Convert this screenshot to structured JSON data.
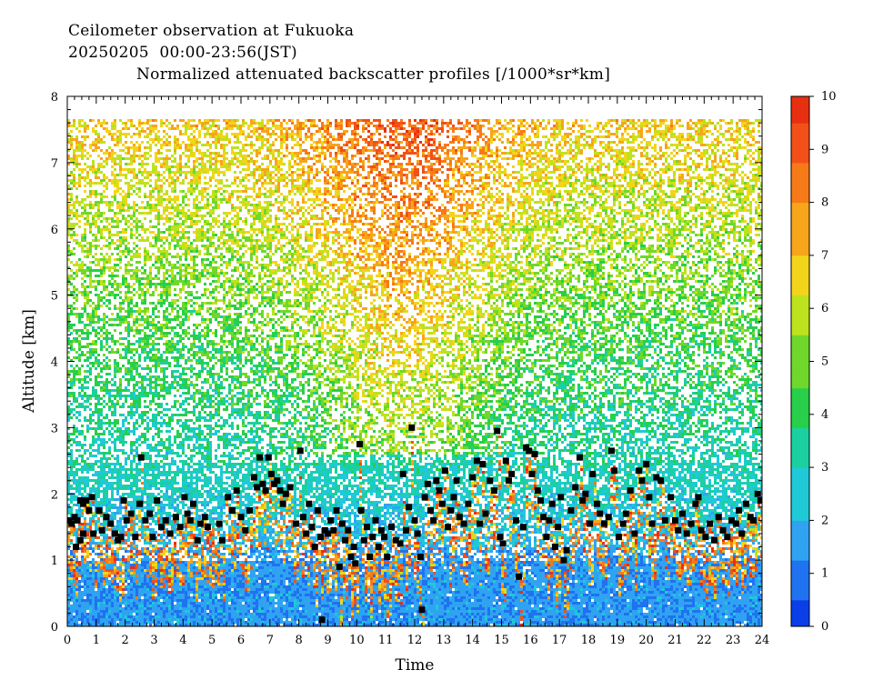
{
  "header": {
    "title": "Ceilometer observation at Fukuoka",
    "subtitle": "20250205  00:00-23:56(JST)",
    "product": "Normalized attenuated backscatter profiles [/1000*sr*km]"
  },
  "chart_data": {
    "type": "heatmap",
    "xlabel": "Time",
    "ylabel": "Altitude [km]",
    "xlim": [
      0,
      24
    ],
    "ylim": [
      0,
      8
    ],
    "x_ticks": [
      "0",
      "1",
      "2",
      "3",
      "4",
      "5",
      "6",
      "7",
      "8",
      "9",
      "10",
      "11",
      "12",
      "13",
      "14",
      "15",
      "16",
      "17",
      "18",
      "19",
      "20",
      "21",
      "22",
      "23",
      "24"
    ],
    "y_ticks": [
      "0",
      "1",
      "2",
      "3",
      "4",
      "5",
      "6",
      "7",
      "8"
    ],
    "data_ceiling_km": 7.68,
    "colorbar": {
      "range": [
        0,
        10
      ],
      "ticks": [
        "0",
        "1",
        "2",
        "3",
        "4",
        "5",
        "6",
        "7",
        "8",
        "9",
        "10"
      ],
      "colors": [
        "#0a3fe8",
        "#1f72f0",
        "#2fa3f2",
        "#1fc9d8",
        "#1bd0a0",
        "#27cf4a",
        "#6fd82a",
        "#bde21e",
        "#f2d51a",
        "#f7a51a",
        "#f77a18",
        "#f25018",
        "#e83010"
      ]
    },
    "cloud_base_series": {
      "name": "cloud base",
      "color": "#000000",
      "points": [
        [
          0.05,
          1.6
        ],
        [
          0.15,
          1.55
        ],
        [
          0.25,
          1.65
        ],
        [
          0.35,
          1.6
        ],
        [
          0.45,
          1.9
        ],
        [
          0.55,
          1.85
        ],
        [
          0.65,
          1.9
        ],
        [
          0.75,
          1.75
        ],
        [
          0.85,
          1.95
        ],
        [
          0.3,
          1.2
        ],
        [
          0.45,
          1.3
        ],
        [
          0.55,
          1.4
        ],
        [
          0.9,
          1.4
        ],
        [
          1.1,
          1.75
        ],
        [
          1.2,
          1.45
        ],
        [
          1.35,
          1.65
        ],
        [
          1.5,
          1.55
        ],
        [
          1.65,
          1.4
        ],
        [
          1.75,
          1.3
        ],
        [
          1.85,
          1.35
        ],
        [
          1.95,
          1.9
        ],
        [
          2.05,
          1.6
        ],
        [
          2.2,
          1.7
        ],
        [
          2.35,
          1.35
        ],
        [
          2.5,
          1.85
        ],
        [
          2.55,
          2.55
        ],
        [
          2.7,
          1.6
        ],
        [
          2.85,
          1.7
        ],
        [
          2.95,
          1.35
        ],
        [
          3.1,
          1.9
        ],
        [
          3.25,
          1.5
        ],
        [
          3.4,
          1.6
        ],
        [
          3.55,
          1.4
        ],
        [
          3.75,
          1.65
        ],
        [
          3.9,
          1.5
        ],
        [
          4.05,
          1.95
        ],
        [
          4.15,
          1.7
        ],
        [
          4.25,
          1.6
        ],
        [
          4.35,
          1.85
        ],
        [
          4.5,
          1.3
        ],
        [
          4.6,
          1.55
        ],
        [
          4.75,
          1.65
        ],
        [
          4.85,
          1.5
        ],
        [
          5.25,
          1.55
        ],
        [
          5.35,
          1.3
        ],
        [
          5.55,
          1.95
        ],
        [
          5.7,
          1.75
        ],
        [
          5.85,
          2.05
        ],
        [
          6.0,
          1.65
        ],
        [
          6.15,
          1.45
        ],
        [
          6.3,
          1.75
        ],
        [
          6.45,
          2.25
        ],
        [
          6.55,
          2.1
        ],
        [
          6.65,
          2.55
        ],
        [
          6.75,
          2.15
        ],
        [
          6.85,
          2.05
        ],
        [
          6.95,
          2.55
        ],
        [
          7.05,
          2.3
        ],
        [
          7.15,
          2.15
        ],
        [
          7.25,
          2.2
        ],
        [
          7.35,
          2.05
        ],
        [
          7.45,
          1.85
        ],
        [
          7.55,
          2.0
        ],
        [
          7.7,
          2.1
        ],
        [
          7.9,
          1.55
        ],
        [
          8.05,
          2.65
        ],
        [
          8.15,
          1.65
        ],
        [
          8.25,
          1.4
        ],
        [
          8.35,
          1.85
        ],
        [
          8.45,
          1.5
        ],
        [
          8.55,
          1.2
        ],
        [
          8.65,
          1.75
        ],
        [
          8.75,
          1.35
        ],
        [
          8.8,
          0.1
        ],
        [
          8.9,
          1.45
        ],
        [
          9.0,
          1.4
        ],
        [
          9.1,
          1.6
        ],
        [
          9.2,
          1.45
        ],
        [
          9.3,
          1.75
        ],
        [
          9.4,
          0.9
        ],
        [
          9.5,
          1.55
        ],
        [
          9.6,
          1.3
        ],
        [
          9.7,
          1.45
        ],
        [
          9.8,
          1.05
        ],
        [
          9.9,
          1.2
        ],
        [
          9.95,
          0.95
        ],
        [
          10.1,
          2.75
        ],
        [
          10.15,
          1.75
        ],
        [
          10.25,
          1.3
        ],
        [
          10.35,
          1.5
        ],
        [
          10.45,
          1.05
        ],
        [
          10.55,
          1.35
        ],
        [
          10.65,
          1.6
        ],
        [
          10.75,
          1.2
        ],
        [
          10.85,
          1.45
        ],
        [
          10.95,
          1.35
        ],
        [
          11.05,
          1.05
        ],
        [
          11.2,
          1.5
        ],
        [
          11.35,
          1.3
        ],
        [
          11.5,
          1.25
        ],
        [
          11.6,
          2.3
        ],
        [
          11.7,
          1.45
        ],
        [
          11.8,
          1.8
        ],
        [
          11.9,
          3.0
        ],
        [
          12.0,
          1.6
        ],
        [
          12.1,
          1.4
        ],
        [
          12.2,
          1.05
        ],
        [
          12.25,
          0.25
        ],
        [
          12.35,
          1.95
        ],
        [
          12.45,
          2.15
        ],
        [
          12.55,
          1.75
        ],
        [
          12.65,
          1.6
        ],
        [
          12.75,
          2.2
        ],
        [
          12.85,
          2.05
        ],
        [
          12.95,
          1.85
        ],
        [
          13.05,
          2.35
        ],
        [
          13.15,
          1.5
        ],
        [
          13.25,
          1.75
        ],
        [
          13.35,
          1.95
        ],
        [
          13.45,
          2.2
        ],
        [
          13.55,
          1.65
        ],
        [
          13.7,
          1.55
        ],
        [
          13.85,
          1.85
        ],
        [
          14.0,
          2.25
        ],
        [
          14.15,
          2.5
        ],
        [
          14.25,
          1.55
        ],
        [
          14.35,
          2.45
        ],
        [
          14.45,
          1.7
        ],
        [
          14.6,
          2.2
        ],
        [
          14.75,
          2.05
        ],
        [
          14.85,
          2.95
        ],
        [
          14.95,
          1.35
        ],
        [
          15.05,
          1.25
        ],
        [
          15.15,
          2.5
        ],
        [
          15.25,
          2.2
        ],
        [
          15.35,
          2.3
        ],
        [
          15.5,
          1.6
        ],
        [
          15.6,
          0.75
        ],
        [
          15.75,
          1.5
        ],
        [
          15.85,
          2.7
        ],
        [
          15.95,
          2.65
        ],
        [
          16.05,
          2.3
        ],
        [
          16.15,
          2.6
        ],
        [
          16.25,
          2.05
        ],
        [
          16.35,
          1.9
        ],
        [
          16.45,
          1.65
        ],
        [
          16.55,
          1.35
        ],
        [
          16.65,
          1.6
        ],
        [
          16.75,
          1.85
        ],
        [
          16.85,
          1.2
        ],
        [
          16.95,
          1.5
        ],
        [
          17.05,
          1.95
        ],
        [
          17.15,
          1.0
        ],
        [
          17.25,
          1.15
        ],
        [
          17.4,
          1.75
        ],
        [
          17.55,
          2.1
        ],
        [
          17.7,
          2.55
        ],
        [
          17.8,
          1.9
        ],
        [
          17.9,
          2.0
        ],
        [
          18.05,
          1.55
        ],
        [
          18.15,
          2.3
        ],
        [
          18.3,
          1.85
        ],
        [
          18.4,
          1.7
        ],
        [
          18.55,
          1.55
        ],
        [
          18.7,
          1.65
        ],
        [
          18.8,
          2.65
        ],
        [
          18.9,
          2.35
        ],
        [
          19.05,
          1.35
        ],
        [
          19.2,
          1.55
        ],
        [
          19.3,
          1.7
        ],
        [
          19.45,
          2.05
        ],
        [
          19.6,
          1.4
        ],
        [
          19.75,
          2.35
        ],
        [
          19.85,
          2.2
        ],
        [
          20.0,
          2.45
        ],
        [
          20.1,
          1.95
        ],
        [
          20.2,
          1.55
        ],
        [
          20.35,
          2.25
        ],
        [
          20.5,
          2.2
        ],
        [
          20.65,
          1.6
        ],
        [
          20.85,
          1.95
        ],
        [
          21.0,
          1.6
        ],
        [
          21.1,
          1.45
        ],
        [
          21.25,
          1.7
        ],
        [
          21.4,
          1.4
        ],
        [
          21.55,
          1.55
        ],
        [
          21.7,
          1.85
        ],
        [
          21.8,
          1.95
        ],
        [
          21.9,
          1.45
        ],
        [
          22.05,
          1.35
        ],
        [
          22.2,
          1.55
        ],
        [
          22.35,
          1.3
        ],
        [
          22.5,
          1.65
        ],
        [
          22.65,
          1.45
        ],
        [
          22.8,
          1.35
        ],
        [
          22.95,
          1.6
        ],
        [
          23.1,
          1.55
        ],
        [
          23.2,
          1.75
        ],
        [
          23.3,
          1.4
        ],
        [
          23.45,
          1.85
        ],
        [
          23.6,
          1.65
        ],
        [
          23.7,
          1.6
        ],
        [
          23.85,
          2.0
        ],
        [
          23.95,
          1.9
        ]
      ]
    }
  }
}
